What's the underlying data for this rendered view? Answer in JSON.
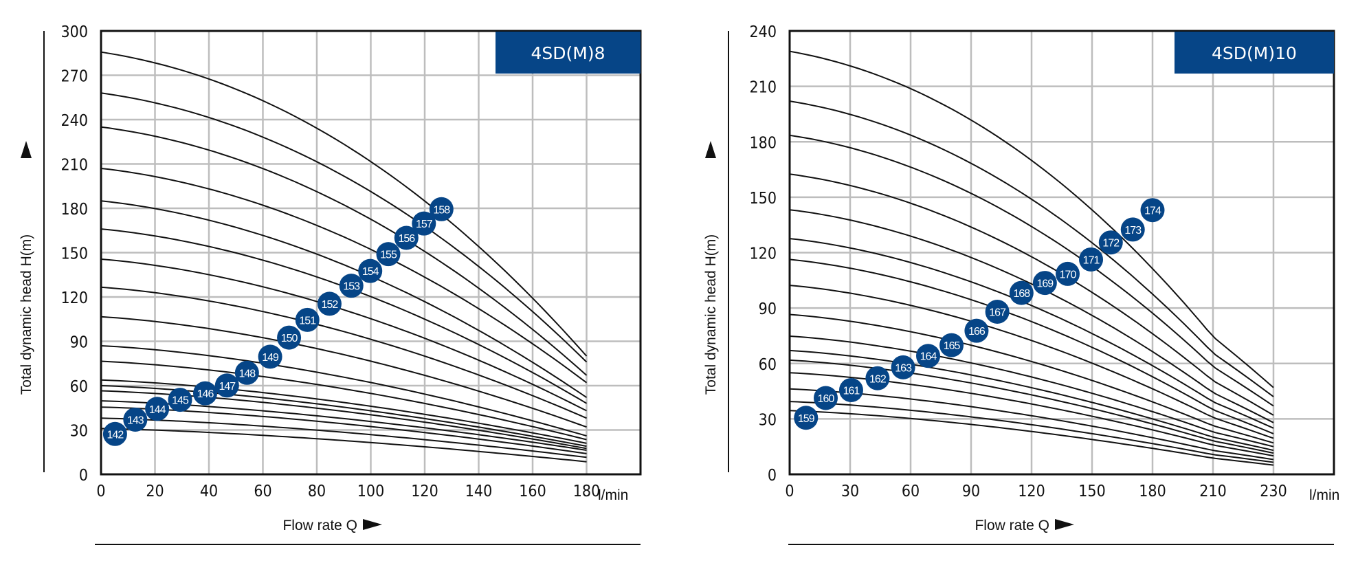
{
  "chart_data": [
    {
      "type": "line",
      "title": "4SD(M)8",
      "xlabel": "Flow rate Q",
      "ylabel": "Total dynamic head H(m)",
      "xunit": "l/min",
      "xlim": [
        0,
        200
      ],
      "ylim": [
        0,
        300
      ],
      "x_ticks": [
        0,
        20,
        40,
        60,
        80,
        100,
        120,
        140,
        160,
        180
      ],
      "x_tick_labels": [
        "0",
        "20",
        "40",
        "60",
        "80",
        "100",
        "120",
        "140",
        "160",
        "180"
      ],
      "y_ticks": [
        0,
        30,
        60,
        90,
        120,
        150,
        180,
        210,
        240,
        270,
        300
      ],
      "y_tick_labels": [
        "0",
        "30",
        "60",
        "90",
        "120",
        "150",
        "180",
        "210",
        "240",
        "270",
        "300"
      ],
      "grid": true,
      "curve_x_end": 180,
      "curves": [
        {
          "h0": 31,
          "h_end": 8.5
        },
        {
          "h0": 38,
          "h_end": 11.5
        },
        {
          "h0": 45.5,
          "h_end": 14
        },
        {
          "h0": 49.7,
          "h_end": 16.3
        },
        {
          "h0": 56.5,
          "h_end": 17.5
        },
        {
          "h0": 60,
          "h_end": 19
        },
        {
          "h0": 63.8,
          "h_end": 21
        },
        {
          "h0": 76.5,
          "h_end": 23.5
        },
        {
          "h0": 87,
          "h_end": 26
        },
        {
          "h0": 106.6,
          "h_end": 32
        },
        {
          "h0": 126.6,
          "h_end": 38
        },
        {
          "h0": 145.6,
          "h_end": 43
        },
        {
          "h0": 166,
          "h_end": 48
        },
        {
          "h0": 185,
          "h_end": 52
        },
        {
          "h0": 207,
          "h_end": 62
        },
        {
          "h0": 235,
          "h_end": 67
        },
        {
          "h0": 258,
          "h_end": 76
        },
        {
          "h0": 285.7,
          "h_end": 80
        }
      ],
      "markers": [
        {
          "label": "142",
          "x": 5.2,
          "y": 27.3
        },
        {
          "label": "143",
          "x": 12.7,
          "y": 37
        },
        {
          "label": "144",
          "x": 20.8,
          "y": 44.3
        },
        {
          "label": "145",
          "x": 29.3,
          "y": 50.4
        },
        {
          "label": "146",
          "x": 38.6,
          "y": 54.8
        },
        {
          "label": "147",
          "x": 46.7,
          "y": 60.1
        },
        {
          "label": "148",
          "x": 54.1,
          "y": 68.7
        },
        {
          "label": "149",
          "x": 62.7,
          "y": 79.6
        },
        {
          "label": "150",
          "x": 69.7,
          "y": 92.5
        },
        {
          "label": "151",
          "x": 76.5,
          "y": 104.5
        },
        {
          "label": "152",
          "x": 84.7,
          "y": 115.4
        },
        {
          "label": "153",
          "x": 92.8,
          "y": 127.6
        },
        {
          "label": "154",
          "x": 99.8,
          "y": 137.6
        },
        {
          "label": "155",
          "x": 106.5,
          "y": 149
        },
        {
          "label": "156",
          "x": 113.2,
          "y": 160
        },
        {
          "label": "157",
          "x": 119.7,
          "y": 169.7
        },
        {
          "label": "158",
          "x": 126.2,
          "y": 179.4
        }
      ]
    },
    {
      "type": "line",
      "title": "4SD(M)10",
      "xlabel": "Flow rate Q",
      "ylabel": "Total dynamic head H(m)",
      "xunit": "l/min",
      "xlim": [
        0,
        250
      ],
      "ylim": [
        0,
        240
      ],
      "x_ticks": [
        0,
        30,
        60,
        90,
        120,
        150,
        180,
        210,
        230
      ],
      "x_tick_labels": [
        "0",
        "30",
        "60",
        "90",
        "120",
        "150",
        "180",
        "210",
        "230"
      ],
      "y_ticks": [
        0,
        30,
        60,
        90,
        120,
        150,
        180,
        210,
        240
      ],
      "y_tick_labels": [
        "0",
        "30",
        "60",
        "90",
        "120",
        "150",
        "180",
        "210",
        "240"
      ],
      "grid": true,
      "curve_x_end": 230,
      "curves": [
        {
          "h0": 34.5,
          "h_end": 5
        },
        {
          "h0": 39.4,
          "h_end": 6.5
        },
        {
          "h0": 46.2,
          "h_end": 8
        },
        {
          "h0": 55,
          "h_end": 10
        },
        {
          "h0": 61.8,
          "h_end": 11.5
        },
        {
          "h0": 67,
          "h_end": 13
        },
        {
          "h0": 74.8,
          "h_end": 15
        },
        {
          "h0": 86.5,
          "h_end": 17
        },
        {
          "h0": 102.3,
          "h_end": 19.5
        },
        {
          "h0": 116.3,
          "h_end": 22
        },
        {
          "h0": 127.6,
          "h_end": 25
        },
        {
          "h0": 143.2,
          "h_end": 28
        },
        {
          "h0": 162.5,
          "h_end": 32
        },
        {
          "h0": 183.5,
          "h_end": 37
        },
        {
          "h0": 202,
          "h_end": 42
        },
        {
          "h0": 229,
          "h_end": 47
        }
      ],
      "markers": [
        {
          "label": "159",
          "x": 8.1,
          "y": 30.6
        },
        {
          "label": "160",
          "x": 17.9,
          "y": 41.3
        },
        {
          "label": "161",
          "x": 30.5,
          "y": 45.6
        },
        {
          "label": "162",
          "x": 43.6,
          "y": 52
        },
        {
          "label": "163",
          "x": 56.3,
          "y": 57.9
        },
        {
          "label": "164",
          "x": 68.7,
          "y": 64.1
        },
        {
          "label": "165",
          "x": 80.3,
          "y": 69.9
        },
        {
          "label": "166",
          "x": 92.7,
          "y": 77.7
        },
        {
          "label": "167",
          "x": 103,
          "y": 88
        },
        {
          "label": "168",
          "x": 115,
          "y": 98.2
        },
        {
          "label": "169",
          "x": 126.6,
          "y": 103.6
        },
        {
          "label": "170",
          "x": 137.9,
          "y": 108.5
        },
        {
          "label": "171",
          "x": 149.5,
          "y": 116.3
        },
        {
          "label": "172",
          "x": 159.3,
          "y": 125.5
        },
        {
          "label": "173",
          "x": 170.2,
          "y": 132.5
        },
        {
          "label": "174",
          "x": 180,
          "y": 143
        }
      ]
    }
  ],
  "colors": {
    "accent": "#064587",
    "grid": "#bdbdbd",
    "curve": "#111111",
    "axis": "#111111"
  }
}
